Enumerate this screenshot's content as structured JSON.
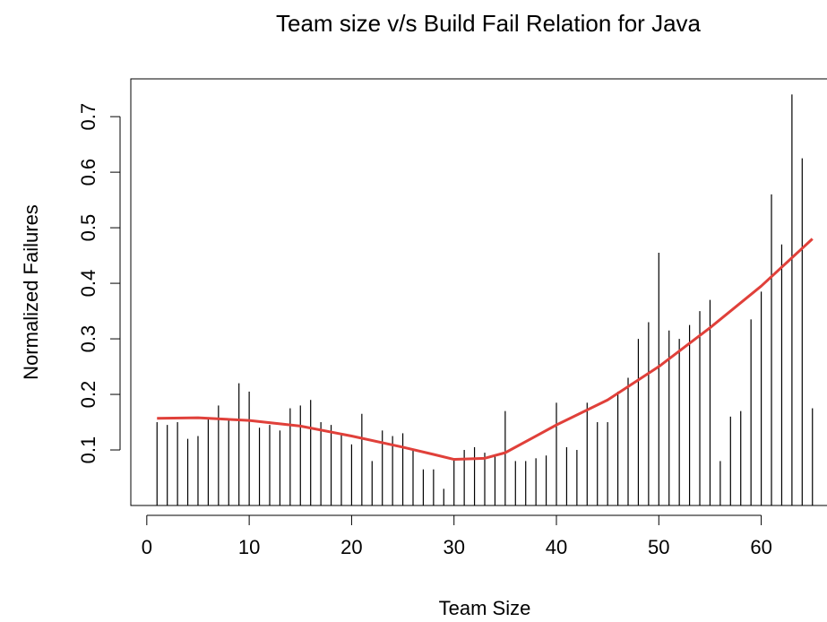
{
  "chart_data": {
    "type": "bar",
    "title": "Team size v/s Build Fail Relation for Java",
    "xlabel": "Team Size",
    "ylabel": "Normalized Failures",
    "x": [
      1,
      2,
      3,
      4,
      5,
      6,
      7,
      8,
      9,
      10,
      11,
      12,
      13,
      14,
      15,
      16,
      17,
      18,
      19,
      20,
      21,
      22,
      23,
      24,
      25,
      26,
      27,
      28,
      29,
      30,
      31,
      32,
      33,
      34,
      35,
      36,
      37,
      38,
      39,
      40,
      41,
      42,
      43,
      44,
      45,
      46,
      47,
      48,
      49,
      50,
      51,
      52,
      53,
      54,
      55,
      56,
      57,
      58,
      59,
      60,
      61,
      62,
      63,
      64,
      65
    ],
    "values": [
      0.15,
      0.145,
      0.15,
      0.12,
      0.125,
      0.155,
      0.18,
      0.155,
      0.22,
      0.205,
      0.14,
      0.145,
      0.135,
      0.175,
      0.18,
      0.19,
      0.15,
      0.145,
      0.13,
      0.11,
      0.165,
      0.08,
      0.135,
      0.125,
      0.13,
      0.1,
      0.065,
      0.065,
      0.03,
      0.085,
      0.1,
      0.105,
      0.095,
      0.09,
      0.17,
      0.08,
      0.08,
      0.085,
      0.09,
      0.185,
      0.105,
      0.1,
      0.185,
      0.15,
      0.15,
      0.205,
      0.23,
      0.3,
      0.33,
      0.455,
      0.315,
      0.3,
      0.325,
      0.35,
      0.37,
      0.08,
      0.16,
      0.17,
      0.335,
      0.385,
      0.56,
      0.47,
      0.74,
      0.625,
      0.175
    ],
    "color": "#000000",
    "smooth": {
      "x": [
        1,
        5,
        10,
        15,
        20,
        25,
        28,
        30,
        33,
        35,
        38,
        40,
        45,
        50,
        55,
        60,
        65
      ],
      "values": [
        0.157,
        0.158,
        0.153,
        0.143,
        0.125,
        0.105,
        0.092,
        0.083,
        0.085,
        0.095,
        0.125,
        0.145,
        0.19,
        0.25,
        0.32,
        0.395,
        0.48
      ],
      "color": "#e0403a"
    },
    "xlim": [
      -1.56,
      67.56
    ],
    "ylim": [
      0,
      0.768
    ],
    "xticks": [
      0,
      10,
      20,
      30,
      40,
      50,
      60
    ],
    "yticks": [
      0.1,
      0.2,
      0.3,
      0.4,
      0.5,
      0.6,
      0.7
    ]
  }
}
